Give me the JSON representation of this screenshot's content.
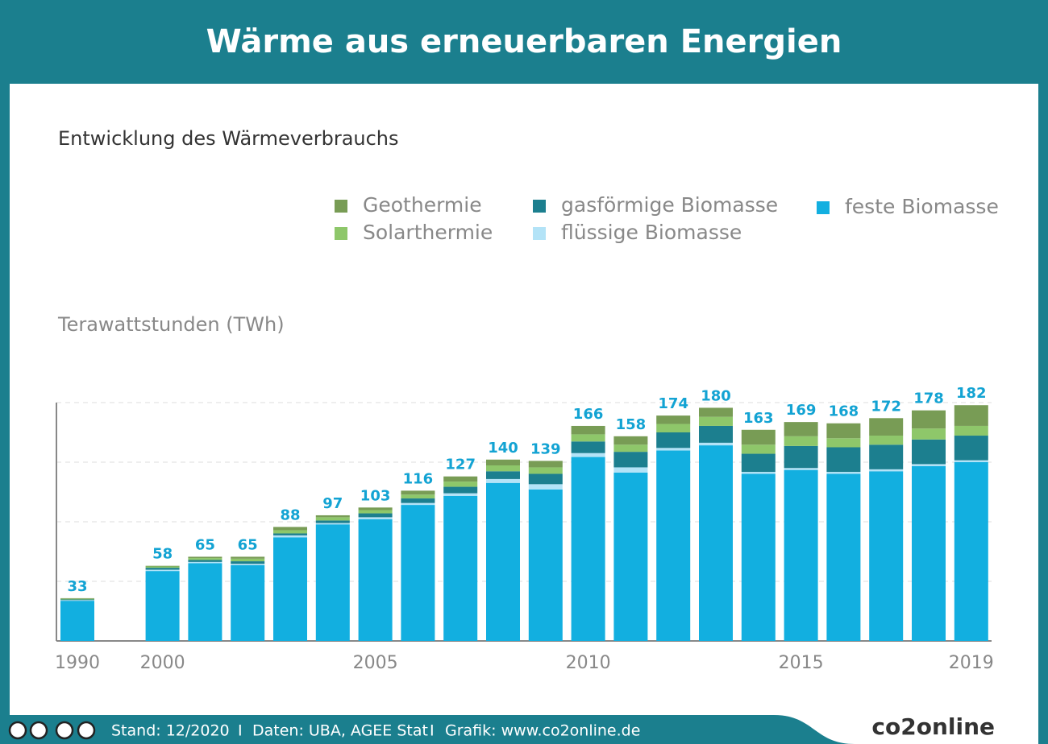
{
  "header": {
    "title": "Wärme aus erneuerbaren Energien"
  },
  "chart_data": {
    "type": "bar",
    "stacked": true,
    "subtitle": "Entwicklung des Wärmeverbrauchs",
    "y_label": "Terawattstunden (TWh)",
    "categories": [
      "1990",
      null,
      "2000",
      null,
      null,
      null,
      null,
      "2005",
      null,
      null,
      null,
      null,
      "2010",
      null,
      null,
      null,
      null,
      "2015",
      null,
      null,
      null,
      "2019"
    ],
    "series": [
      {
        "name": "feste Biomasse",
        "color": "#12afe0",
        "values": [
          31,
          null,
          54,
          60,
          58.5,
          80,
          90,
          94,
          105,
          112,
          122,
          117,
          142,
          130,
          147,
          151,
          129,
          132,
          129,
          131,
          135,
          138
        ]
      },
      {
        "name": "flüssige Biomasse",
        "color": "#b3e3f7",
        "values": [
          0.5,
          null,
          1,
          1,
          1,
          1.5,
          1,
          1.5,
          1.5,
          2,
          3,
          4,
          3,
          4,
          2,
          2,
          1.5,
          1.5,
          1.5,
          1.5,
          1.5,
          1.5
        ]
      },
      {
        "name": "gasförmige Biomasse",
        "color": "#1c7f8f",
        "values": [
          0.5,
          null,
          1.5,
          1.5,
          2,
          1.5,
          2,
          3,
          3.5,
          5,
          6,
          8,
          9,
          12,
          12,
          13,
          14,
          17,
          19,
          19,
          19,
          19
        ]
      },
      {
        "name": "Solarthermie",
        "color": "#8ec76a",
        "values": [
          0.5,
          null,
          1,
          1.5,
          2,
          2.5,
          2.5,
          2.5,
          3,
          4,
          4.5,
          5,
          5.5,
          5.5,
          6.5,
          7,
          7,
          7.5,
          7,
          7,
          8.5,
          7.5
        ]
      },
      {
        "name": "Geothermie",
        "color": "#789c55",
        "values": [
          0.5,
          null,
          0.5,
          1,
          1.5,
          2.5,
          1.5,
          2,
          3,
          4,
          4.5,
          5,
          6.5,
          6.5,
          6.5,
          7,
          11.5,
          11,
          11.5,
          13.5,
          14,
          16
        ]
      }
    ],
    "totals": [
      33,
      null,
      58,
      65,
      65,
      88,
      97,
      103,
      116,
      127,
      140,
      139,
      166,
      158,
      174,
      180,
      163,
      169,
      168,
      172,
      178,
      182
    ],
    "ylim": [
      0,
      184
    ],
    "grid": true
  },
  "footer": {
    "stand": "Stand: 12/2020",
    "separator": "I",
    "daten": "Daten: UBA, AGEE Stat",
    "grafik": "Grafik: www.co2online.de",
    "logo": "co2online"
  }
}
